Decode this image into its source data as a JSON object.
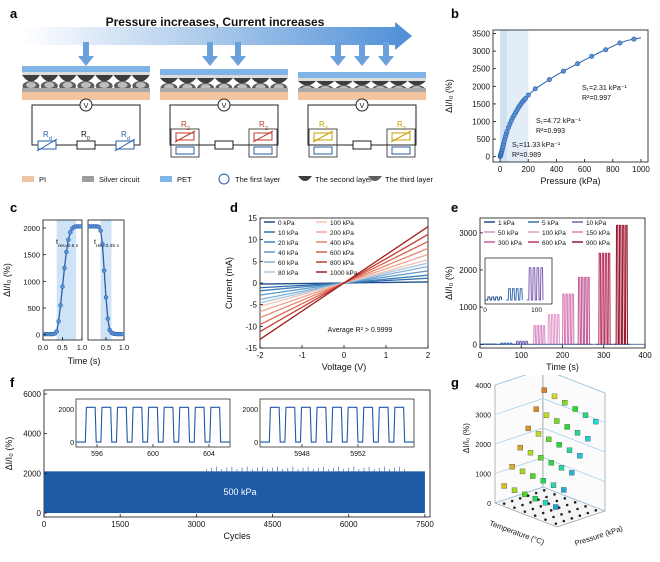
{
  "panel_labels": {
    "a": "a",
    "b": "b",
    "c": "c",
    "d": "d",
    "e": "e",
    "f": "f",
    "g": "g"
  },
  "panel_a": {
    "banner": "Pressure increases, Current increases",
    "circuit1": {
      "left": "R",
      "left_sub": "d",
      "mid": "R",
      "mid_sub": "0",
      "right": "R",
      "right_sub": "d"
    },
    "circuit2": {
      "left": "R",
      "left_sub": "2",
      "right": "R",
      "right_sub": "2"
    },
    "circuit3": {
      "left": "R",
      "left_sub": "3",
      "right": "R",
      "right_sub": "3"
    },
    "meter": "V",
    "legend": [
      "PI",
      "Silver circuit",
      "PET",
      "The first layer",
      "The second layer",
      "The third layer"
    ],
    "colors": {
      "pi": "#f3c4a0",
      "silver": "#9e9e9e",
      "pet": "#7fb5e6",
      "arrow": "#6aa0dc"
    }
  },
  "chart_data": [
    {
      "id": "b",
      "type": "scatter",
      "xlabel": "Pressure (kPa)",
      "ylabel": "ΔI/I₀ (%)",
      "xlim": [
        -50,
        1050
      ],
      "ylim": [
        -150,
        3600
      ],
      "xticks": [
        0,
        200,
        400,
        600,
        800,
        1000
      ],
      "yticks": [
        0,
        500,
        1000,
        1500,
        2000,
        2500,
        3000,
        3500
      ],
      "x": [
        1,
        2,
        4,
        6,
        8,
        10,
        12,
        15,
        18,
        21,
        25,
        30,
        35,
        40,
        45,
        50,
        60,
        70,
        80,
        90,
        100,
        110,
        120,
        130,
        140,
        150,
        160,
        170,
        180,
        200,
        250,
        300,
        350,
        400,
        450,
        500,
        550,
        600,
        650,
        700,
        750,
        800,
        850,
        900,
        950,
        1000
      ],
      "y": [
        5,
        25,
        50,
        75,
        100,
        130,
        160,
        200,
        250,
        300,
        370,
        440,
        520,
        590,
        660,
        720,
        830,
        930,
        1020,
        1110,
        1180,
        1250,
        1320,
        1390,
        1450,
        1510,
        1560,
        1610,
        1650,
        1750,
        1930,
        2060,
        2190,
        2320,
        2430,
        2540,
        2640,
        2750,
        2850,
        2950,
        3040,
        3140,
        3230,
        3300,
        3340,
        3380
      ],
      "annotations": {
        "s1": "S₁=2.31 kPa⁻¹",
        "r1": "R²=0.997",
        "s2": "S₁=4.72 kPa⁻¹",
        "r2": "R²=0.993",
        "s3": "S₁=11.33 kPa⁻¹",
        "r3": "R²=0.989"
      },
      "shaded_regions": [
        [
          0,
          50
        ],
        [
          50,
          200
        ]
      ],
      "color": "#2a5ea8"
    },
    {
      "id": "c",
      "type": "line",
      "xlabel": "Time (s)",
      "ylabel": "ΔI/I₀ (%)",
      "ylim": [
        -100,
        2150
      ],
      "yticks": [
        0,
        500,
        1000,
        1500,
        2000
      ],
      "left": {
        "xlim": [
          0,
          1.0
        ],
        "xticks": [
          "0.0",
          "0.5",
          "1.0"
        ],
        "shade": [
          0.35,
          0.85
        ],
        "annotation": "t_res=0.5 s",
        "x": [
          0.05,
          0.1,
          0.15,
          0.2,
          0.25,
          0.3,
          0.35,
          0.4,
          0.45,
          0.5,
          0.55,
          0.6,
          0.65,
          0.7,
          0.75,
          0.8,
          0.85,
          0.9,
          0.95
        ],
        "y": [
          10,
          10,
          10,
          10,
          10,
          20,
          60,
          250,
          550,
          900,
          1250,
          1550,
          1780,
          1920,
          1990,
          2020,
          2030,
          2030,
          2030
        ]
      },
      "right": {
        "xlim": [
          0,
          1.0
        ],
        "xticks": [
          "0.5",
          "1.0"
        ],
        "shade": [
          0.35,
          0.65
        ],
        "annotation": "t_rec=0.35 s",
        "x": [
          0.05,
          0.1,
          0.15,
          0.2,
          0.25,
          0.3,
          0.35,
          0.4,
          0.45,
          0.5,
          0.55,
          0.6,
          0.65,
          0.7,
          0.75,
          0.8,
          0.85,
          0.9,
          0.95
        ],
        "y": [
          2030,
          2030,
          2030,
          2030,
          2030,
          2020,
          1950,
          1700,
          1200,
          700,
          300,
          90,
          40,
          20,
          15,
          10,
          10,
          10,
          10
        ]
      },
      "color": "#2a5ea8"
    },
    {
      "id": "d",
      "type": "line",
      "xlabel": "Voltage (V)",
      "ylabel": "Current (mA)",
      "xlim": [
        -2,
        2
      ],
      "ylim": [
        -15,
        15
      ],
      "xticks": [
        -2,
        -1,
        0,
        1,
        2
      ],
      "yticks": [
        -15,
        -10,
        -5,
        0,
        5,
        10,
        15
      ],
      "annotation": "Average R² > 0.9999",
      "series": [
        {
          "name": "0 kPa",
          "slope": 0.12,
          "color": "#1f4e8c"
        },
        {
          "name": "10 kPa",
          "slope": 0.55,
          "color": "#2f6aa6"
        },
        {
          "name": "20 kPa",
          "slope": 0.9,
          "color": "#3f82bd"
        },
        {
          "name": "40 kPa",
          "slope": 1.4,
          "color": "#5a99cc"
        },
        {
          "name": "60 kPa",
          "slope": 1.9,
          "color": "#7fb0d8"
        },
        {
          "name": "80 kPa",
          "slope": 2.3,
          "color": "#a9c8e3"
        },
        {
          "name": "100 kPa",
          "slope": 2.7,
          "color": "#f4c2b4"
        },
        {
          "name": "200 kPa",
          "slope": 3.3,
          "color": "#eea591"
        },
        {
          "name": "400 kPa",
          "slope": 4.0,
          "color": "#e5846c"
        },
        {
          "name": "600 kPa",
          "slope": 4.8,
          "color": "#d8604a"
        },
        {
          "name": "800 kPa",
          "slope": 5.6,
          "color": "#c33d2e"
        },
        {
          "name": "1000 kPa",
          "slope": 6.5,
          "color": "#9e1f1f"
        }
      ]
    },
    {
      "id": "e",
      "type": "line",
      "xlabel": "Time (s)",
      "ylabel": "ΔI/I₀ (%)",
      "xlim": [
        0,
        400
      ],
      "ylim": [
        -100,
        3400
      ],
      "xticks": [
        0,
        100,
        200,
        300,
        400
      ],
      "yticks": [
        0,
        1000,
        2000,
        3000
      ],
      "series": [
        {
          "name": "1 kPa",
          "amp": 5,
          "start": 10,
          "color": "#1f4e8c"
        },
        {
          "name": "5 kPa",
          "amp": 30,
          "start": 50,
          "color": "#3a6fb0"
        },
        {
          "name": "10 kPa",
          "amp": 80,
          "start": 88,
          "color": "#7b5fb0"
        },
        {
          "name": "50 kPa",
          "amp": 500,
          "start": 130,
          "color": "#d98fc6"
        },
        {
          "name": "100 kPa",
          "amp": 800,
          "start": 165,
          "color": "#e4a0cf"
        },
        {
          "name": "150 kPa",
          "amp": 1350,
          "start": 200,
          "color": "#d77fb8"
        },
        {
          "name": "300 kPa",
          "amp": 1800,
          "start": 238,
          "color": "#c65f9a"
        },
        {
          "name": "600 kPa",
          "amp": 2450,
          "start": 288,
          "color": "#b8355e"
        },
        {
          "name": "900 kPa",
          "amp": 3200,
          "start": 330,
          "color": "#9a1830"
        }
      ],
      "inset": {
        "xticks": [
          0,
          100
        ],
        "xlim": [
          0,
          130
        ],
        "ylim": [
          0,
          100
        ]
      }
    },
    {
      "id": "f",
      "type": "area",
      "xlabel": "Cycles",
      "ylabel": "ΔI/I₀ (%)",
      "xlim": [
        0,
        7600
      ],
      "ylim": [
        -200,
        6200
      ],
      "xticks": [
        0,
        1500,
        3000,
        4500,
        6000,
        7500
      ],
      "yticks": [
        0,
        2000,
        4000,
        6000
      ],
      "annotation": "500 kPa",
      "amplitude": 2100,
      "color": "#1f5aa6",
      "inset_left": {
        "xticks": [
          596,
          600,
          604
        ],
        "xlim": [
          594.5,
          605.5
        ],
        "yticks": [
          0,
          2000
        ],
        "cycles": 9
      },
      "inset_right": {
        "xticks": [
          5948,
          5952
        ],
        "xlim": [
          5945,
          5956
        ],
        "yticks": [
          0,
          2000
        ],
        "cycles": 9
      }
    },
    {
      "id": "g",
      "type": "scatter",
      "xlabel": "Temperature (°C)",
      "ylabel": "Pressure (kPa)",
      "zlabel": "ΔI/I₀ (%)",
      "zticks": [
        0,
        1000,
        2000,
        3000,
        4000
      ],
      "zlim": [
        0,
        4000
      ],
      "temp_levels": 6,
      "pressure_levels": 6
    }
  ]
}
